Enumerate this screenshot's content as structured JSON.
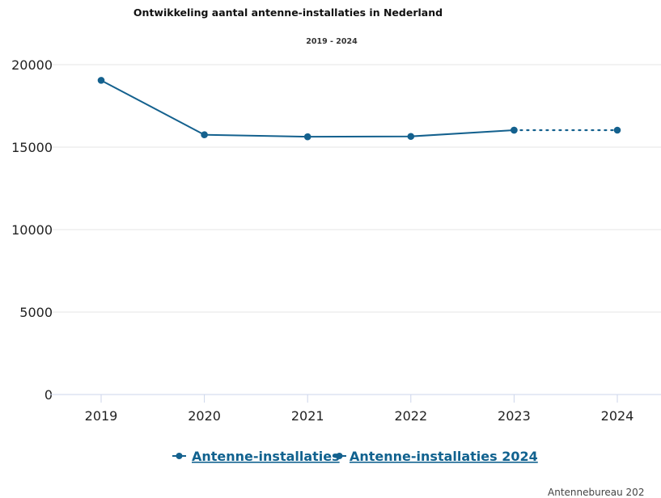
{
  "chart_data": {
    "type": "line",
    "title": "Ontwikkeling aantal antenne-installaties in Nederland",
    "subtitle": "2019 - 2024",
    "categories": [
      "2019",
      "2020",
      "2021",
      "2022",
      "2023",
      "2024"
    ],
    "ylim": [
      0,
      20000
    ],
    "yticks": [
      "0",
      "5000",
      "10000",
      "15000",
      "20000"
    ],
    "grid": true,
    "legend_position": "bottom-center",
    "series": [
      {
        "name": "Antenne-installaties",
        "values": [
          19050,
          15750,
          15630,
          15650,
          16030,
          null
        ],
        "color": "#14618e",
        "style": "solid"
      },
      {
        "name": "Antenne-installaties 2024",
        "values": [
          null,
          null,
          null,
          null,
          16030,
          16030
        ],
        "color": "#14618e",
        "style": "dotted"
      }
    ]
  },
  "credits": "Antennebureau 202"
}
